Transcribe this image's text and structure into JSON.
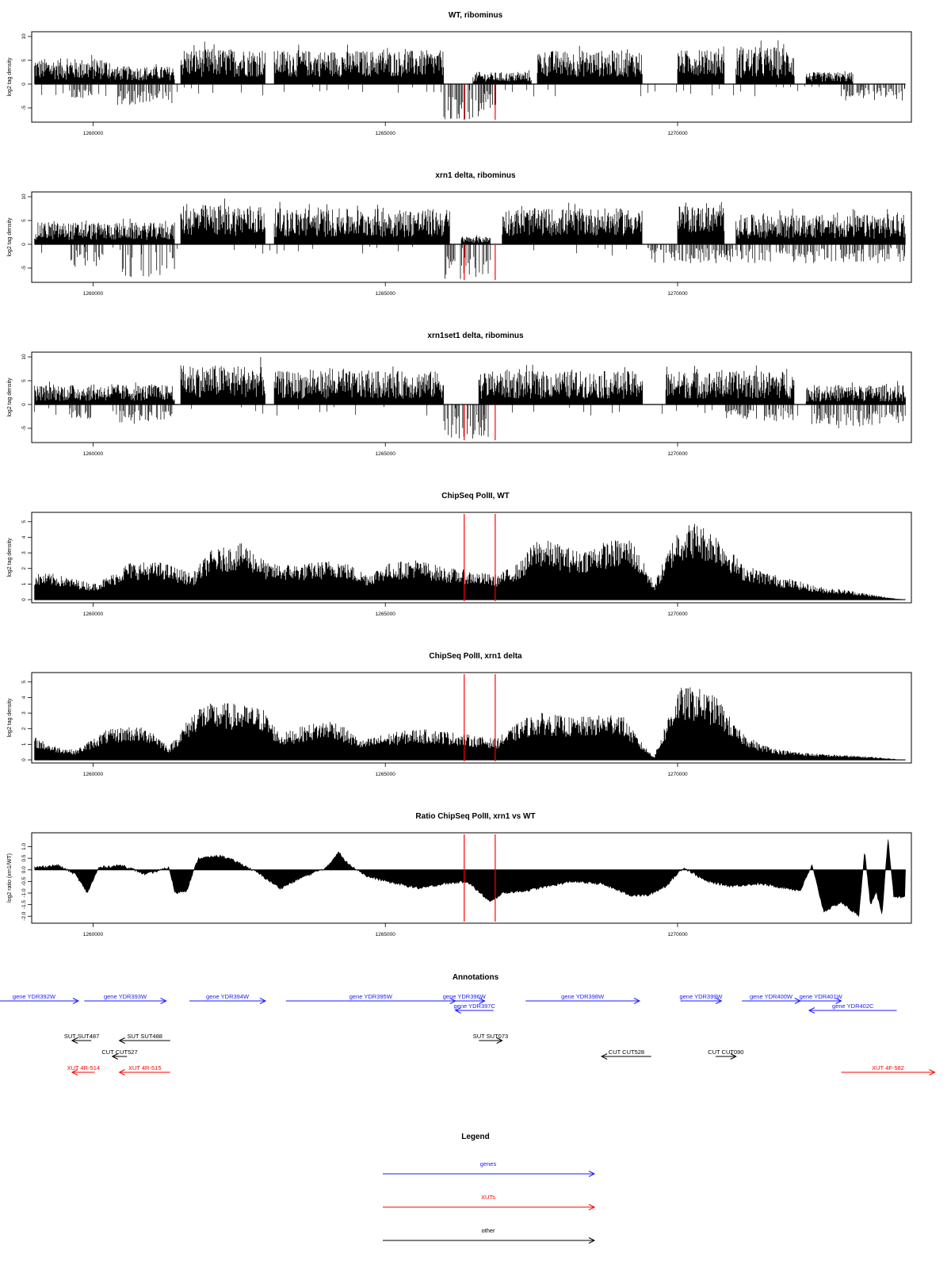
{
  "colors": {
    "gene": "#1a1aff",
    "xut": "#ff0000",
    "other": "#000000",
    "marker": "#ff0000",
    "data": "#000000"
  },
  "markers_x": [
    1266350,
    1266880
  ],
  "x_range": [
    1258950,
    1274000
  ],
  "x_ticks": [
    1260000,
    1265000,
    1270000
  ],
  "x_tick_labels": [
    "1260000",
    "1265000",
    "1270000"
  ],
  "panels": [
    {
      "title": "WT, ribominus",
      "ylabel": "log2 tag density",
      "ylim": [
        -8,
        11
      ],
      "yticks": [
        -5,
        0,
        5,
        10
      ],
      "ytick_labels": [
        "-5",
        "0",
        "5",
        "10"
      ],
      "chart_data": {
        "type": "bar",
        "style": "strand-density",
        "pos_segments": [
          [
            1259000,
            1260300,
            3,
            6.5
          ],
          [
            1260300,
            1261400,
            2.5,
            4.5
          ],
          [
            1261500,
            1262950,
            5,
            9
          ],
          [
            1263100,
            1266000,
            5,
            8.5
          ],
          [
            1266500,
            1267500,
            1.5,
            3
          ],
          [
            1267600,
            1269400,
            5,
            8.5
          ],
          [
            1270000,
            1270800,
            6,
            8.5
          ],
          [
            1271000,
            1272000,
            4,
            9.5
          ],
          [
            1272200,
            1273000,
            1.5,
            3
          ]
        ],
        "neg_segments": [
          [
            1259600,
            1260000,
            -2.5,
            -3
          ],
          [
            1260400,
            1261400,
            -3.5,
            -4.5
          ],
          [
            1266000,
            1266700,
            -6.5,
            -7.5
          ],
          [
            1266700,
            1266900,
            -3,
            -5
          ],
          [
            1272800,
            1273900,
            -2,
            -3.5
          ]
        ],
        "red_bars": [
          [
            1266350,
            -7.5
          ],
          [
            1266880,
            -7.5
          ]
        ]
      }
    },
    {
      "title": "xrn1 delta, ribominus",
      "ylabel": "log2 tag density",
      "ylim": [
        -8,
        11
      ],
      "yticks": [
        -5,
        0,
        5,
        10
      ],
      "ytick_labels": [
        "-5",
        "0",
        "5",
        "10"
      ],
      "chart_data": {
        "type": "bar",
        "style": "strand-density",
        "pos_segments": [
          [
            1259000,
            1261400,
            3,
            5.5
          ],
          [
            1261500,
            1262950,
            6,
            10
          ],
          [
            1263100,
            1266100,
            5,
            9
          ],
          [
            1266300,
            1266800,
            1,
            2
          ],
          [
            1267000,
            1269400,
            6,
            9
          ],
          [
            1270000,
            1270800,
            8,
            9.5
          ],
          [
            1271000,
            1273900,
            4,
            7.5
          ]
        ],
        "neg_segments": [
          [
            1259600,
            1260200,
            -3,
            -5
          ],
          [
            1260500,
            1261400,
            -5,
            -7
          ],
          [
            1266000,
            1266800,
            -6,
            -7.5
          ],
          [
            1269500,
            1273900,
            -2,
            -4
          ]
        ],
        "red_bars": [
          [
            1266350,
            -7.5
          ],
          [
            1266880,
            -7.5
          ]
        ]
      }
    },
    {
      "title": "xrn1set1 delta, ribominus",
      "ylabel": "log2 tag density",
      "ylim": [
        -8,
        11
      ],
      "yticks": [
        -5,
        0,
        5,
        10
      ],
      "ytick_labels": [
        "-5",
        "0",
        "5",
        "10"
      ],
      "chart_data": {
        "type": "bar",
        "style": "strand-density",
        "pos_segments": [
          [
            1259000,
            1261400,
            2.5,
            5
          ],
          [
            1261500,
            1262950,
            5,
            10
          ],
          [
            1263100,
            1266000,
            4,
            8.5
          ],
          [
            1266600,
            1269400,
            4,
            8.5
          ],
          [
            1269800,
            1272000,
            4,
            8.5
          ],
          [
            1272200,
            1273900,
            2,
            5
          ]
        ],
        "neg_segments": [
          [
            1259600,
            1260000,
            -2,
            -3
          ],
          [
            1260400,
            1261400,
            -3,
            -4.5
          ],
          [
            1266000,
            1266800,
            -6,
            -7.5
          ],
          [
            1270800,
            1272000,
            -2,
            -3.5
          ],
          [
            1272300,
            1273900,
            -3,
            -5
          ]
        ],
        "red_bars": [
          [
            1266350,
            -7.5
          ],
          [
            1266880,
            -7.5
          ]
        ]
      }
    },
    {
      "title": "ChipSeq PolII, WT",
      "ylabel": "log2 tag density",
      "ylim": [
        -0.2,
        5.6
      ],
      "yticks": [
        0,
        1,
        2,
        3,
        4,
        5
      ],
      "ytick_labels": [
        "0",
        "1",
        "2",
        "3",
        "4",
        "5"
      ],
      "chart_data": {
        "type": "area",
        "series": [
          {
            "x": [
              1259000,
              1259300,
              1260000,
              1260300,
              1260600,
              1261200,
              1261700,
              1262000,
              1262600,
              1263000,
              1263600,
              1264200,
              1264700,
              1265000,
              1265500,
              1266000,
              1266400,
              1266900,
              1267300,
              1267600,
              1267900,
              1268300,
              1268800,
              1269200,
              1269600,
              1270000,
              1270300,
              1270700,
              1271100,
              1271600,
              1272000,
              1272400,
              1272900,
              1273200,
              1273500,
              1273900
            ],
            "y": [
              1.6,
              1.6,
              1.0,
              1.5,
              2.3,
              2.3,
              1.6,
              3.0,
              3.5,
              2.2,
              2.2,
              2.5,
              1.6,
              2.2,
              2.5,
              2.0,
              1.8,
              1.5,
              2.3,
              3.8,
              3.5,
              3.0,
              3.6,
              3.8,
              1.0,
              4.4,
              4.8,
              4.0,
              2.2,
              1.6,
              1.2,
              0.8,
              0.6,
              0.4,
              0.2,
              0.0
            ]
          }
        ]
      }
    },
    {
      "title": "ChipSeq PolII, xrn1 delta",
      "ylabel": "log2 tag density",
      "ylim": [
        -0.2,
        5.6
      ],
      "yticks": [
        0,
        1,
        2,
        3,
        4,
        5
      ],
      "ytick_labels": [
        "0",
        "1",
        "2",
        "3",
        "4",
        "5"
      ],
      "chart_data": {
        "type": "area",
        "series": [
          {
            "x": [
              1259000,
              1259300,
              1259700,
              1260200,
              1260600,
              1261000,
              1261300,
              1261800,
              1262300,
              1262900,
              1263200,
              1263700,
              1264100,
              1264600,
              1265000,
              1265500,
              1266000,
              1266500,
              1266900,
              1267400,
              1267700,
              1268200,
              1268600,
              1269000,
              1269400,
              1269600,
              1270000,
              1270300,
              1270700,
              1271000,
              1271400,
              1271800,
              1272300,
              1272800,
              1273300,
              1273900
            ],
            "y": [
              1.4,
              0.9,
              0.6,
              1.8,
              2.1,
              1.9,
              0.8,
              3.4,
              3.5,
              3.2,
              1.6,
              2.2,
              2.5,
              1.2,
              1.6,
              1.9,
              1.8,
              1.5,
              1.3,
              2.6,
              2.9,
              2.6,
              2.7,
              3.0,
              1.0,
              0.2,
              4.4,
              4.5,
              3.8,
              2.0,
              1.0,
              0.6,
              0.4,
              0.3,
              0.2,
              0.0
            ]
          }
        ]
      }
    },
    {
      "title": "Ratio ChipSeq PolII, xrn1 vs WT",
      "ylabel": "log2 ratio (xrn1/WT)",
      "ylim": [
        -2.3,
        1.6
      ],
      "yticks": [
        -2.0,
        -1.5,
        -1.0,
        -0.5,
        0.0,
        0.5,
        1.0
      ],
      "ytick_labels": [
        "-2.0",
        "-1.5",
        "-1.0",
        "-0.5",
        "0.0",
        "0.5",
        "1.0"
      ],
      "chart_data": {
        "type": "area",
        "series": [
          {
            "x": [
              1259000,
              1259400,
              1259700,
              1259900,
              1260100,
              1260500,
              1260900,
              1261300,
              1261400,
              1261600,
              1261800,
              1262200,
              1262500,
              1262800,
              1263200,
              1263600,
              1264000,
              1264200,
              1264300,
              1264700,
              1265200,
              1265600,
              1266000,
              1266400,
              1266800,
              1267000,
              1267400,
              1267800,
              1268200,
              1268700,
              1269200,
              1269500,
              1269800,
              1270100,
              1270500,
              1270900,
              1271400,
              1271900,
              1272100,
              1272300,
              1272500,
              1272800,
              1273100,
              1273200,
              1273300,
              1273400,
              1273500,
              1273600,
              1273700,
              1273900
            ],
            "y": [
              0.1,
              0.2,
              -0.2,
              -1.0,
              0.1,
              0.2,
              -0.2,
              0.1,
              -1.0,
              -0.9,
              0.5,
              0.6,
              0.3,
              -0.1,
              -0.8,
              -0.3,
              0.1,
              0.8,
              0.4,
              -0.3,
              -0.6,
              -0.8,
              -0.6,
              -0.5,
              -1.4,
              -1.0,
              -0.9,
              -0.7,
              -0.5,
              -0.6,
              -1.1,
              -1.1,
              -0.7,
              0.1,
              -0.5,
              -0.7,
              -0.6,
              -0.8,
              -0.9,
              0.2,
              -1.8,
              -1.4,
              -2.0,
              0.8,
              -1.5,
              -1.0,
              -1.9,
              1.4,
              -1.2,
              -1.2
            ]
          }
        ]
      }
    }
  ],
  "annotations": {
    "title": "Annotations",
    "items": [
      {
        "label": "gene YDR392W",
        "x1": 1258230,
        "x2": 1259750,
        "dir": "right",
        "row": 0,
        "color": "gene"
      },
      {
        "label": "gene YDR393W",
        "x1": 1259850,
        "x2": 1261250,
        "dir": "right",
        "row": 0,
        "color": "gene"
      },
      {
        "label": "gene YDR394W",
        "x1": 1261650,
        "x2": 1262950,
        "dir": "right",
        "row": 0,
        "color": "gene"
      },
      {
        "label": "gene YDR395W",
        "x1": 1263300,
        "x2": 1266200,
        "dir": "right",
        "row": 0,
        "color": "gene"
      },
      {
        "label": "gene YDR396W",
        "x1": 1266000,
        "x2": 1266700,
        "dir": "right",
        "row": 0,
        "color": "gene"
      },
      {
        "label": "gene YDR397C",
        "x1": 1266200,
        "x2": 1266850,
        "dir": "left",
        "row": 1,
        "color": "gene"
      },
      {
        "label": "gene YDR398W",
        "x1": 1267400,
        "x2": 1269350,
        "dir": "right",
        "row": 0,
        "color": "gene"
      },
      {
        "label": "gene YDR399W",
        "x1": 1270050,
        "x2": 1270750,
        "dir": "right",
        "row": 0,
        "color": "gene"
      },
      {
        "label": "gene YDR400W",
        "x1": 1271100,
        "x2": 1272100,
        "dir": "right",
        "row": 0,
        "color": "gene"
      },
      {
        "label": "gene YDR401W",
        "x1": 1272100,
        "x2": 1272800,
        "dir": "right",
        "row": 0,
        "color": "gene"
      },
      {
        "label": "gene YDR402C",
        "x1": 1272250,
        "x2": 1273750,
        "dir": "left",
        "row": 1,
        "color": "gene"
      },
      {
        "label": "SUT SUT487",
        "x1": 1259640,
        "x2": 1259970,
        "dir": "left",
        "row": 2,
        "color": "other"
      },
      {
        "label": "SUT SUT488",
        "x1": 1260450,
        "x2": 1261320,
        "dir": "left",
        "row": 2,
        "color": "other"
      },
      {
        "label": "SUT SUT073",
        "x1": 1266600,
        "x2": 1267000,
        "dir": "right",
        "row": 2,
        "color": "other"
      },
      {
        "label": "CUT CUT527",
        "x1": 1260330,
        "x2": 1260580,
        "dir": "left",
        "row": 3,
        "color": "other"
      },
      {
        "label": "CUT CUT528",
        "x1": 1268700,
        "x2": 1269550,
        "dir": "left",
        "row": 3,
        "color": "other"
      },
      {
        "label": "CUT CUT090",
        "x1": 1270650,
        "x2": 1271000,
        "dir": "right",
        "row": 3,
        "color": "other"
      },
      {
        "label": "XUT 4R-514",
        "x1": 1259640,
        "x2": 1260030,
        "dir": "left",
        "row": 4,
        "color": "xut"
      },
      {
        "label": "XUT 4R-515",
        "x1": 1260450,
        "x2": 1261320,
        "dir": "left",
        "row": 4,
        "color": "xut"
      },
      {
        "label": "XUT 4F-582",
        "x1": 1272800,
        "x2": 1274400,
        "dir": "right",
        "row": 4,
        "color": "xut"
      }
    ]
  },
  "legend": {
    "title": "Legend",
    "items": [
      {
        "label": "genes",
        "color": "gene"
      },
      {
        "label": "XUTs",
        "color": "xut"
      },
      {
        "label": "other",
        "color": "other"
      }
    ]
  }
}
